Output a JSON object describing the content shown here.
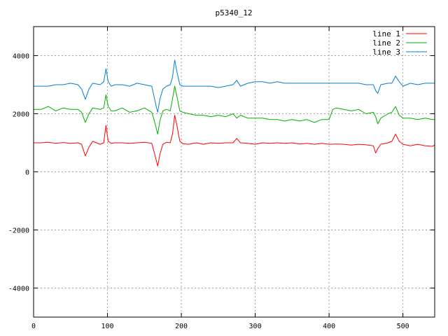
{
  "chart_data": {
    "type": "line",
    "title": "p5340_12",
    "xlabel": "",
    "ylabel": "",
    "xlim": [
      0,
      543
    ],
    "ylim": [
      -5000,
      5000
    ],
    "xticks": [
      0,
      100,
      200,
      300,
      400,
      500
    ],
    "yticks": [
      -4000,
      -2000,
      0,
      2000,
      4000
    ],
    "grid": true,
    "legend_position": "top-right",
    "series": [
      {
        "name": "line 1",
        "color": "#ff0000",
        "x": [
          0,
          10,
          20,
          30,
          40,
          50,
          60,
          65,
          70,
          75,
          80,
          90,
          95,
          98,
          101,
          105,
          110,
          120,
          130,
          140,
          150,
          160,
          163,
          166,
          168,
          171,
          175,
          180,
          185,
          188,
          191,
          194,
          198,
          202,
          210,
          220,
          230,
          240,
          250,
          260,
          270,
          275,
          280,
          290,
          300,
          310,
          320,
          330,
          340,
          350,
          360,
          370,
          380,
          390,
          400,
          410,
          420,
          430,
          440,
          450,
          460,
          463,
          466,
          470,
          480,
          485,
          490,
          495,
          500,
          510,
          520,
          530,
          540,
          543
        ],
        "values": [
          1000,
          1000,
          1020,
          980,
          1010,
          980,
          1000,
          950,
          550,
          850,
          1050,
          950,
          1000,
          1600,
          1050,
          980,
          1000,
          1000,
          980,
          1000,
          1020,
          980,
          700,
          400,
          200,
          600,
          950,
          1020,
          1000,
          1300,
          1950,
          1600,
          1050,
          970,
          950,
          1000,
          950,
          1000,
          980,
          1000,
          1000,
          1150,
          1000,
          980,
          950,
          1000,
          980,
          1000,
          980,
          1000,
          960,
          980,
          950,
          980,
          950,
          960,
          950,
          920,
          950,
          930,
          900,
          650,
          800,
          950,
          1000,
          1050,
          1300,
          1050,
          950,
          900,
          950,
          900,
          880,
          920
        ]
      },
      {
        "name": "line 2",
        "color": "#00b000",
        "x": [
          0,
          10,
          20,
          30,
          40,
          50,
          60,
          65,
          70,
          75,
          80,
          90,
          95,
          98,
          101,
          105,
          110,
          120,
          130,
          140,
          150,
          160,
          163,
          166,
          168,
          171,
          175,
          180,
          185,
          188,
          191,
          194,
          198,
          202,
          210,
          220,
          230,
          240,
          250,
          260,
          270,
          275,
          280,
          290,
          300,
          310,
          320,
          330,
          340,
          350,
          360,
          370,
          380,
          390,
          400,
          405,
          410,
          420,
          430,
          440,
          450,
          460,
          463,
          466,
          470,
          480,
          485,
          490,
          495,
          500,
          510,
          520,
          530,
          540,
          543
        ],
        "values": [
          2150,
          2150,
          2250,
          2100,
          2200,
          2150,
          2150,
          2050,
          1700,
          2000,
          2200,
          2150,
          2200,
          2650,
          2250,
          2100,
          2100,
          2200,
          2050,
          2100,
          2200,
          2050,
          1800,
          1500,
          1300,
          1750,
          2100,
          2150,
          2100,
          2500,
          2950,
          2600,
          2100,
          2050,
          2000,
          1950,
          1950,
          1900,
          1950,
          1900,
          2000,
          1850,
          1950,
          1850,
          1850,
          1850,
          1800,
          1800,
          1750,
          1800,
          1750,
          1800,
          1700,
          1800,
          1800,
          2150,
          2200,
          2150,
          2100,
          2150,
          2000,
          2050,
          1900,
          1650,
          1850,
          2000,
          2050,
          2250,
          1950,
          1850,
          1850,
          1800,
          1850,
          1800,
          1800
        ]
      },
      {
        "name": "line 3",
        "color": "#0080d0",
        "x": [
          0,
          10,
          20,
          30,
          40,
          50,
          60,
          65,
          70,
          75,
          80,
          90,
          95,
          98,
          101,
          105,
          110,
          120,
          130,
          140,
          150,
          160,
          163,
          166,
          168,
          171,
          175,
          180,
          185,
          188,
          191,
          194,
          198,
          202,
          210,
          220,
          230,
          240,
          250,
          260,
          270,
          275,
          280,
          290,
          300,
          310,
          320,
          330,
          340,
          350,
          360,
          370,
          380,
          390,
          400,
          410,
          420,
          430,
          440,
          450,
          460,
          463,
          466,
          470,
          480,
          485,
          490,
          495,
          500,
          510,
          520,
          530,
          540,
          543
        ],
        "values": [
          2950,
          2950,
          2950,
          3000,
          3000,
          3050,
          3000,
          2850,
          2500,
          2850,
          3050,
          3000,
          3100,
          3550,
          3100,
          2950,
          3000,
          3000,
          2950,
          3050,
          3000,
          2950,
          2600,
          2250,
          2050,
          2500,
          2850,
          2950,
          3000,
          3250,
          3850,
          3450,
          3000,
          2950,
          2950,
          2950,
          2950,
          2950,
          2900,
          2950,
          3000,
          3150,
          2950,
          3050,
          3100,
          3100,
          3050,
          3100,
          3050,
          3050,
          3050,
          3050,
          3050,
          3050,
          3050,
          3050,
          3050,
          3050,
          3050,
          3000,
          3000,
          2800,
          2700,
          3000,
          3050,
          3050,
          3300,
          3100,
          2950,
          3050,
          3000,
          3050,
          3050,
          3050
        ]
      }
    ]
  }
}
